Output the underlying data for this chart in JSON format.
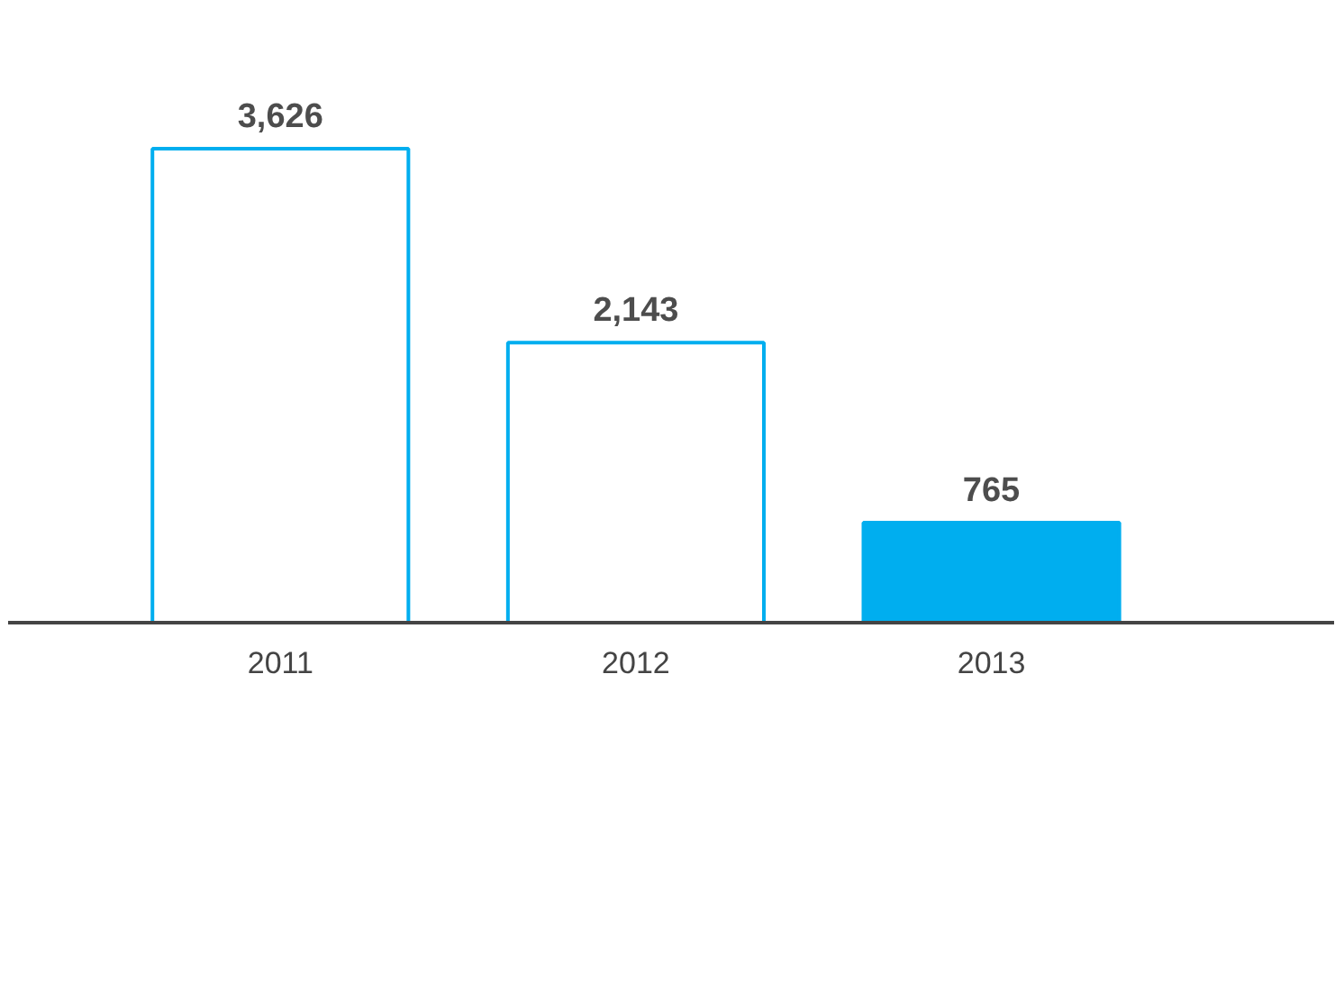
{
  "chart_data": {
    "type": "bar",
    "categories": [
      "2011",
      "2012",
      "2013"
    ],
    "values": [
      3626,
      2143,
      765
    ],
    "color": "#00aeef",
    "colors": [
      "#ffffff",
      "#ffffff",
      "#00aeef"
    ],
    "value_labels": [
      "3,626",
      "2,143",
      "765"
    ],
    "grid": false,
    "legend": false
  }
}
